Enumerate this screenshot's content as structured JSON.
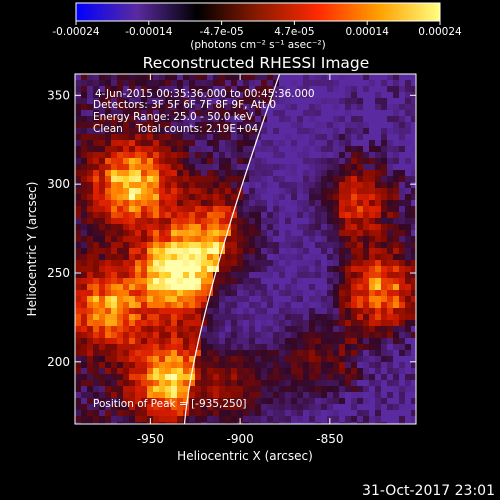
{
  "chart_data": {
    "type": "heatmap",
    "title": "Reconstructed RHESSI Image",
    "xlabel": "Heliocentric X (arcsec)",
    "ylabel": "Heliocentric Y (arcsec)",
    "x_range": [
      -992,
      -802
    ],
    "y_range": [
      165,
      362
    ],
    "x_ticks": [
      -950,
      -900,
      -850
    ],
    "x_tick_labels": [
      "-950",
      "-900",
      "-850"
    ],
    "y_ticks": [
      200,
      250,
      300,
      350
    ],
    "y_tick_labels": [
      "200",
      "250",
      "300",
      "350"
    ],
    "colorbar": {
      "min": -0.00024,
      "max": 0.00024,
      "tick_labels": [
        "-0.00024",
        "-0.00014",
        "-4.7e-05",
        "4.7e-05",
        "0.00014",
        "0.00024"
      ],
      "unit_label": "(photons cm⁻² s⁻¹ asec⁻²)",
      "colors": [
        "#0000ff",
        "#5a2aa0",
        "#000000",
        "#8b1a00",
        "#ff2a00",
        "#ffa000",
        "#ffff80"
      ]
    },
    "annotations": {
      "time_range": "4-Jun-2015 00:35:36.000 to 00:45:36.000",
      "detectors": "Detectors: 3F 5F 6F 7F 8F 9F, Att 0",
      "energy_range": "Energy Range: 25.0 - 50.0 keV",
      "method": "Clean    Total counts: 2.19E+04",
      "peak": "Position of Peak = [-935,250]"
    },
    "peak_position": [
      -935,
      250
    ],
    "limb_curve": [
      [
        -931,
        165
      ],
      [
        -915,
        245
      ],
      [
        -878,
        362
      ]
    ],
    "hot_spots": [
      {
        "x": -935,
        "y": 250,
        "strength": 1.0
      },
      {
        "x": -960,
        "y": 300,
        "strength": 0.85
      },
      {
        "x": -940,
        "y": 190,
        "strength": 0.75
      },
      {
        "x": -975,
        "y": 230,
        "strength": 0.7
      },
      {
        "x": -910,
        "y": 270,
        "strength": 0.6
      },
      {
        "x": -905,
        "y": 185,
        "strength": 0.55
      },
      {
        "x": -822,
        "y": 240,
        "strength": 0.75
      },
      {
        "x": -835,
        "y": 290,
        "strength": 0.55
      },
      {
        "x": -860,
        "y": 200,
        "strength": 0.5
      }
    ]
  },
  "footer": {
    "date": "31-Oct-2017 23:01"
  }
}
